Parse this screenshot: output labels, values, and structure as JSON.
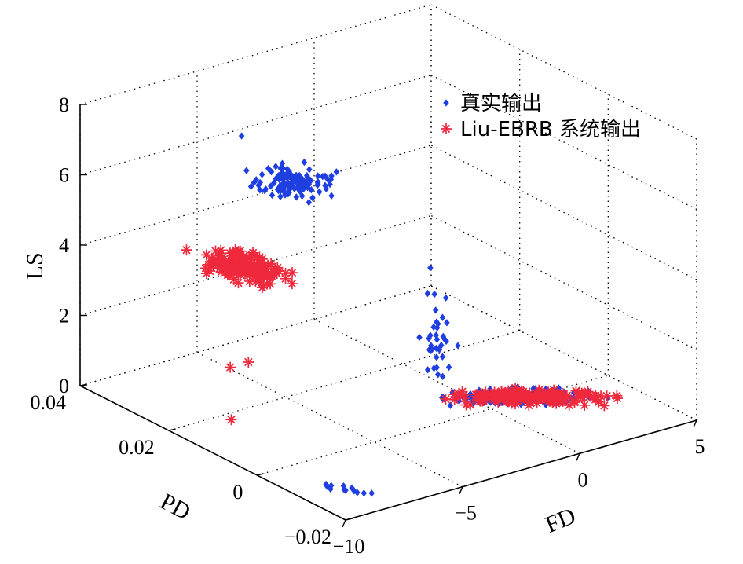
{
  "chart_data": {
    "type": "scatter",
    "projection": "3d",
    "grid": true,
    "legend_position": "top-right",
    "axes": {
      "x": {
        "label": "FD",
        "range": [
          -10,
          5
        ],
        "ticks": [
          -10,
          -5,
          0,
          5
        ],
        "tick_labels": [
          "−10",
          "−5",
          "0",
          "5"
        ]
      },
      "y": {
        "label": "PD",
        "range": [
          -0.02,
          0.04
        ],
        "ticks": [
          -0.02,
          0,
          0.02,
          0.04
        ],
        "tick_labels": [
          "−0.02",
          "0",
          "0.02",
          "0.04"
        ]
      },
      "z": {
        "label": "LS",
        "range": [
          0,
          8
        ],
        "ticks": [
          0,
          2,
          4,
          6,
          8
        ],
        "tick_labels": [
          "0",
          "2",
          "4",
          "6",
          "8"
        ]
      }
    },
    "series": [
      {
        "name": "真实输出",
        "color": "#1f3fe0",
        "marker": "diamond",
        "clusters": [
          {
            "fd": [
              -3.2,
              -0.8
            ],
            "pd": [
              0.028,
              0.04
            ],
            "ls": [
              4.0,
              5.3
            ],
            "count": 120
          },
          {
            "fd": [
              -1.8,
              4.2
            ],
            "pd": [
              -0.012,
              0.006
            ],
            "ls": [
              0.0,
              0.6
            ],
            "count": 170
          },
          {
            "fd": [
              -2.8,
              -2.0
            ],
            "pd": [
              -0.004,
              0.004
            ],
            "ls": [
              0.6,
              4.2
            ],
            "count": 35
          },
          {
            "fd": [
              -9.4,
              -7.8
            ],
            "pd": [
              -0.018,
              -0.008
            ],
            "ls": [
              0.0,
              0.3
            ],
            "count": 12
          }
        ],
        "points": [
          {
            "fd": -3.1,
            "pd": 0.04,
            "ls": 5.8
          },
          {
            "fd": -2.6,
            "pd": 0.0,
            "ls": 4.5
          }
        ]
      },
      {
        "name": "Liu-EBRB 系统输出",
        "color": "#f0283c",
        "marker": "star",
        "clusters": [
          {
            "fd": [
              -5.5,
              -3.3
            ],
            "pd": [
              0.025,
              0.04
            ],
            "ls": [
              2.2,
              3.4
            ],
            "count": 150
          },
          {
            "fd": [
              -1.8,
              4.2
            ],
            "pd": [
              -0.012,
              0.006
            ],
            "ls": [
              0.0,
              0.6
            ],
            "count": 160
          }
        ],
        "points": [
          {
            "fd": -6.4,
            "pd": 0.035,
            "ls": 3.5
          },
          {
            "fd": -6.8,
            "pd": 0.023,
            "ls": 1.0
          },
          {
            "fd": -6.4,
            "pd": 0.021,
            "ls": 1.2
          },
          {
            "fd": -7.7,
            "pd": 0.018,
            "ls": 0.0
          }
        ]
      }
    ]
  }
}
